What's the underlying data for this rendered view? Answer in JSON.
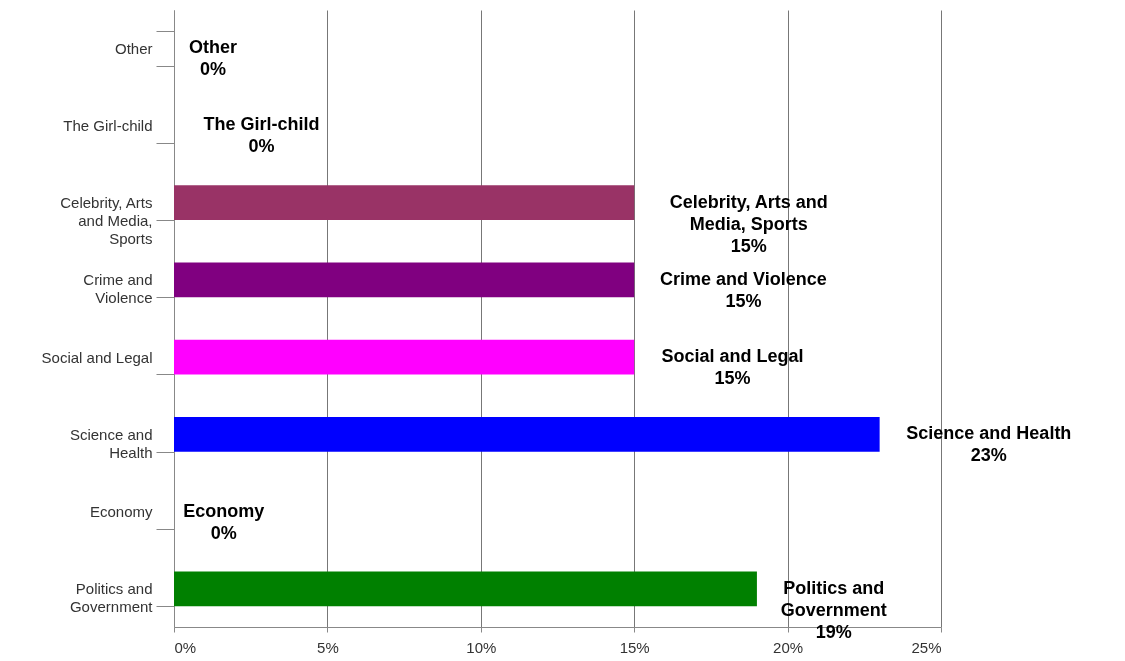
{
  "chart_data": {
    "type": "bar",
    "orientation": "horizontal",
    "categories": [
      "Other",
      "The Girl-child",
      "Celebrity, Arts\nand Media,\nSports",
      "Crime and\nViolence",
      "Social and Legal",
      "Science and\nHealth",
      "Economy",
      "Politics and\nGovernment"
    ],
    "values": [
      0,
      0,
      15,
      15,
      15,
      23,
      0,
      19
    ],
    "colors": [
      "#993366",
      "#993366",
      "#993366",
      "#800080",
      "#ff00ff",
      "#0000ff",
      "#008000",
      "#008000"
    ],
    "value_labels": [
      "Other\n0%",
      "The Girl-child\n0%",
      "Celebrity, Arts and\nMedia, Sports\n15%",
      "Crime and Violence\n15%",
      "Social and Legal\n15%",
      "Science and Health\n23%",
      "Economy\n0%",
      "Politics and\nGovernment\n19%"
    ],
    "xlim": [
      0,
      25
    ],
    "xticks": [
      {
        "value": 0,
        "label": "0%"
      },
      {
        "value": 5,
        "label": "5%"
      },
      {
        "value": 10,
        "label": "10%"
      },
      {
        "value": 15,
        "label": "15%"
      },
      {
        "value": 20,
        "label": "20%"
      },
      {
        "value": 25,
        "label": "25%"
      }
    ],
    "grid": "x"
  }
}
